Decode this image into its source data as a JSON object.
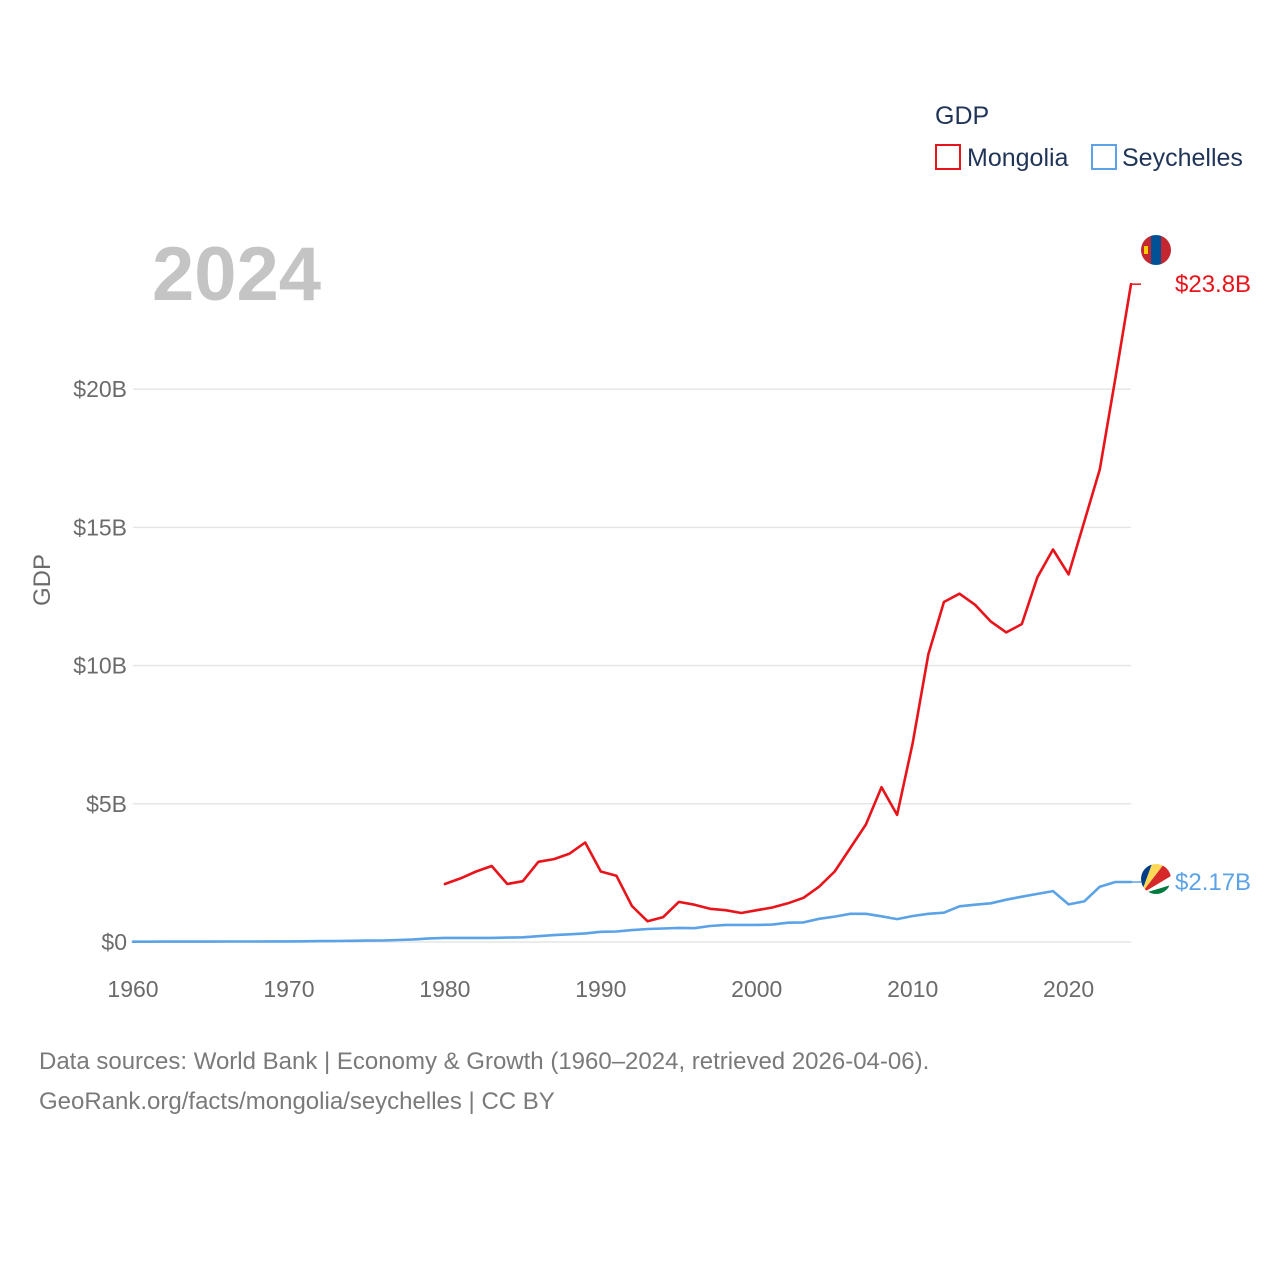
{
  "chart_data": {
    "type": "line",
    "title": "GDP",
    "year_label": "2024",
    "ylabel": "GDP",
    "xlabel": "",
    "xlim": [
      1960,
      2024
    ],
    "ylim": [
      0,
      25
    ],
    "y_unit": "billion USD",
    "x_ticks": [
      1960,
      1970,
      1980,
      1990,
      2000,
      2010,
      2020
    ],
    "x_tick_labels": [
      "1960",
      "1970",
      "1980",
      "1990",
      "2000",
      "2010",
      "2020"
    ],
    "y_ticks": [
      0,
      5,
      10,
      15,
      20
    ],
    "y_tick_labels": [
      "$0",
      "$5B",
      "$10B",
      "$15B",
      "$20B"
    ],
    "grid": true,
    "legend_position": "top-right",
    "series": [
      {
        "name": "Mongolia",
        "color": "#e8141b",
        "end_label": "$23.8B",
        "flag_icon": "mongolia-flag-icon",
        "x": [
          1980,
          1981,
          1982,
          1983,
          1984,
          1985,
          1986,
          1987,
          1988,
          1989,
          1990,
          1991,
          1992,
          1993,
          1994,
          1995,
          1996,
          1997,
          1998,
          1999,
          2000,
          2001,
          2002,
          2003,
          2004,
          2005,
          2006,
          2007,
          2008,
          2009,
          2010,
          2011,
          2012,
          2013,
          2014,
          2015,
          2016,
          2017,
          2018,
          2019,
          2020,
          2021,
          2022,
          2023,
          2024
        ],
        "values": [
          2.1,
          2.3,
          2.55,
          2.75,
          2.1,
          2.2,
          2.9,
          3.0,
          3.2,
          3.6,
          2.55,
          2.4,
          1.3,
          0.75,
          0.9,
          1.45,
          1.35,
          1.2,
          1.15,
          1.05,
          1.15,
          1.25,
          1.4,
          1.6,
          2.0,
          2.55,
          3.4,
          4.25,
          5.6,
          4.6,
          7.2,
          10.4,
          12.3,
          12.6,
          12.2,
          11.6,
          11.2,
          11.5,
          13.2,
          14.2,
          13.3,
          15.2,
          17.1,
          20.4,
          23.8
        ]
      },
      {
        "name": "Seychelles",
        "color": "#5ba3e6",
        "end_label": "$2.17B",
        "flag_icon": "seychelles-flag-icon",
        "x": [
          1960,
          1961,
          1962,
          1963,
          1964,
          1965,
          1966,
          1967,
          1968,
          1969,
          1970,
          1971,
          1972,
          1973,
          1974,
          1975,
          1976,
          1977,
          1978,
          1979,
          1980,
          1981,
          1982,
          1983,
          1984,
          1985,
          1986,
          1987,
          1988,
          1989,
          1990,
          1991,
          1992,
          1993,
          1994,
          1995,
          1996,
          1997,
          1998,
          1999,
          2000,
          2001,
          2002,
          2003,
          2004,
          2005,
          2006,
          2007,
          2008,
          2009,
          2010,
          2011,
          2012,
          2013,
          2014,
          2015,
          2016,
          2017,
          2018,
          2019,
          2020,
          2021,
          2022,
          2023,
          2024
        ],
        "values": [
          0.012,
          0.012,
          0.013,
          0.014,
          0.015,
          0.016,
          0.017,
          0.018,
          0.018,
          0.02,
          0.022,
          0.026,
          0.032,
          0.037,
          0.044,
          0.052,
          0.055,
          0.071,
          0.093,
          0.13,
          0.15,
          0.15,
          0.15,
          0.15,
          0.16,
          0.17,
          0.21,
          0.25,
          0.28,
          0.31,
          0.37,
          0.38,
          0.43,
          0.47,
          0.49,
          0.51,
          0.5,
          0.58,
          0.62,
          0.62,
          0.62,
          0.63,
          0.7,
          0.71,
          0.84,
          0.92,
          1.02,
          1.02,
          0.93,
          0.83,
          0.94,
          1.02,
          1.06,
          1.29,
          1.35,
          1.4,
          1.53,
          1.64,
          1.74,
          1.84,
          1.36,
          1.47,
          2.0,
          2.17,
          2.17
        ]
      }
    ]
  },
  "legend": {
    "title": "GDP",
    "items": [
      {
        "label": "Mongolia",
        "color": "#e8141b"
      },
      {
        "label": "Seychelles",
        "color": "#5ba3e6"
      }
    ]
  },
  "footer": {
    "source_line1": "Data sources: World Bank | Economy & Growth (1960–2024, retrieved 2026-04-06).",
    "source_line2": "GeoRank.org/facts/mongolia/seychelles | CC BY"
  }
}
